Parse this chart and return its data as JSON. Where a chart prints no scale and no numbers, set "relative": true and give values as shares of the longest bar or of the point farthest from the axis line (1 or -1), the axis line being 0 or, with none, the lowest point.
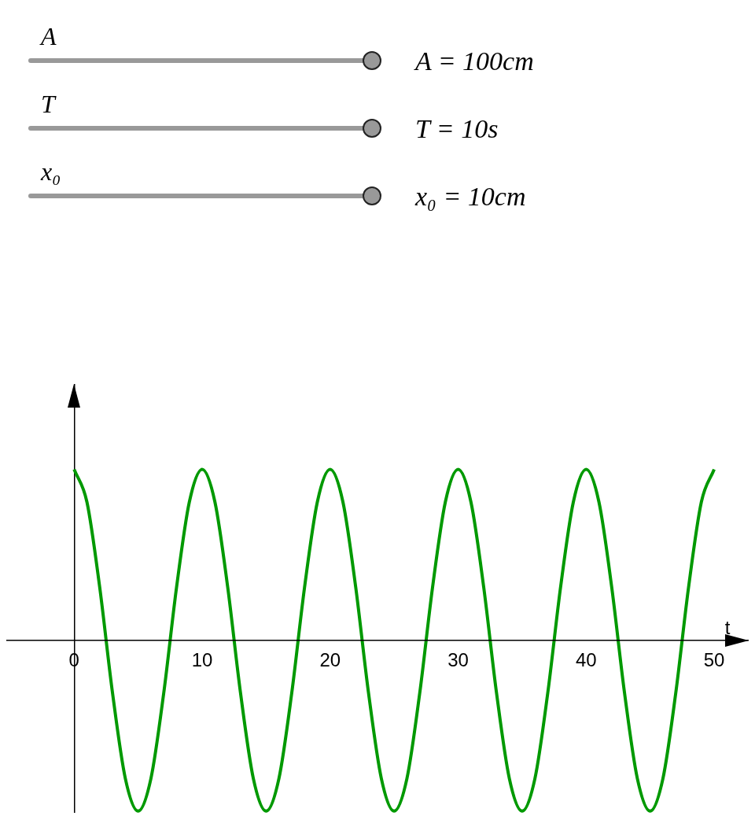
{
  "chart_data": {
    "type": "line",
    "relative": true,
    "xlabel": "t",
    "x": [
      0,
      1,
      2,
      3,
      4,
      5,
      6,
      7,
      8,
      9,
      10,
      11,
      12,
      13,
      14,
      15,
      16,
      17,
      18,
      19,
      20,
      21,
      22,
      23,
      24,
      25,
      26,
      27,
      28,
      29,
      30,
      31,
      32,
      33,
      34,
      35,
      36,
      37,
      38,
      39,
      40,
      41,
      42,
      43,
      44,
      45,
      46,
      47,
      48,
      49,
      50
    ],
    "series": [
      {
        "color": "#009900",
        "values": [
          1,
          0.809,
          0.309,
          -0.309,
          -0.809,
          -1,
          -0.809,
          -0.309,
          0.309,
          0.809,
          1,
          0.809,
          0.309,
          -0.309,
          -0.809,
          -1,
          -0.809,
          -0.309,
          0.309,
          0.809,
          1,
          0.809,
          0.309,
          -0.309,
          -0.809,
          -1,
          -0.809,
          -0.309,
          0.309,
          0.809,
          1,
          0.809,
          0.309,
          -0.309,
          -0.809,
          -1,
          -0.809,
          -0.309,
          0.309,
          0.809,
          1,
          0.809,
          0.309,
          -0.309,
          -0.809,
          -1,
          -0.809,
          -0.309,
          0.309,
          0.809,
          1
        ]
      }
    ],
    "xlim": [
      -5.3,
      52.7
    ],
    "xticks": [
      0,
      10,
      20,
      30,
      40,
      50
    ],
    "legend": false,
    "marker": "none",
    "line_style": "solid",
    "annotations": [
      "A",
      "A = 100cm",
      "T",
      "T = 10s",
      "x₀",
      "x₀ = 10cm"
    ]
  }
}
